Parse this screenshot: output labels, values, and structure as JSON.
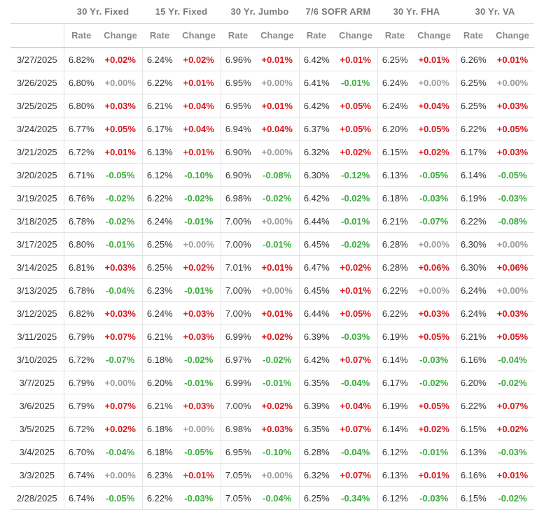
{
  "table": {
    "groups": [
      "30 Yr. Fixed",
      "15 Yr. Fixed",
      "30 Yr. Jumbo",
      "7/6 SOFR ARM",
      "30 Yr. FHA",
      "30 Yr. VA"
    ],
    "sub_rate_label": "Rate",
    "sub_change_label": "Change",
    "colors": {
      "increase": "#d71920",
      "decrease": "#3bab3d",
      "unchanged": "#9a9a9a"
    },
    "rows": [
      {
        "date": "3/27/2025",
        "cells": [
          [
            "6.82%",
            "+0.02%"
          ],
          [
            "6.24%",
            "+0.02%"
          ],
          [
            "6.96%",
            "+0.01%"
          ],
          [
            "6.42%",
            "+0.01%"
          ],
          [
            "6.25%",
            "+0.01%"
          ],
          [
            "6.26%",
            "+0.01%"
          ]
        ]
      },
      {
        "date": "3/26/2025",
        "cells": [
          [
            "6.80%",
            "+0.00%"
          ],
          [
            "6.22%",
            "+0.01%"
          ],
          [
            "6.95%",
            "+0.00%"
          ],
          [
            "6.41%",
            "-0.01%"
          ],
          [
            "6.24%",
            "+0.00%"
          ],
          [
            "6.25%",
            "+0.00%"
          ]
        ]
      },
      {
        "date": "3/25/2025",
        "cells": [
          [
            "6.80%",
            "+0.03%"
          ],
          [
            "6.21%",
            "+0.04%"
          ],
          [
            "6.95%",
            "+0.01%"
          ],
          [
            "6.42%",
            "+0.05%"
          ],
          [
            "6.24%",
            "+0.04%"
          ],
          [
            "6.25%",
            "+0.03%"
          ]
        ]
      },
      {
        "date": "3/24/2025",
        "cells": [
          [
            "6.77%",
            "+0.05%"
          ],
          [
            "6.17%",
            "+0.04%"
          ],
          [
            "6.94%",
            "+0.04%"
          ],
          [
            "6.37%",
            "+0.05%"
          ],
          [
            "6.20%",
            "+0.05%"
          ],
          [
            "6.22%",
            "+0.05%"
          ]
        ]
      },
      {
        "date": "3/21/2025",
        "cells": [
          [
            "6.72%",
            "+0.01%"
          ],
          [
            "6.13%",
            "+0.01%"
          ],
          [
            "6.90%",
            "+0.00%"
          ],
          [
            "6.32%",
            "+0.02%"
          ],
          [
            "6.15%",
            "+0.02%"
          ],
          [
            "6.17%",
            "+0.03%"
          ]
        ]
      },
      {
        "date": "3/20/2025",
        "cells": [
          [
            "6.71%",
            "-0.05%"
          ],
          [
            "6.12%",
            "-0.10%"
          ],
          [
            "6.90%",
            "-0.08%"
          ],
          [
            "6.30%",
            "-0.12%"
          ],
          [
            "6.13%",
            "-0.05%"
          ],
          [
            "6.14%",
            "-0.05%"
          ]
        ]
      },
      {
        "date": "3/19/2025",
        "cells": [
          [
            "6.76%",
            "-0.02%"
          ],
          [
            "6.22%",
            "-0.02%"
          ],
          [
            "6.98%",
            "-0.02%"
          ],
          [
            "6.42%",
            "-0.02%"
          ],
          [
            "6.18%",
            "-0.03%"
          ],
          [
            "6.19%",
            "-0.03%"
          ]
        ]
      },
      {
        "date": "3/18/2025",
        "cells": [
          [
            "6.78%",
            "-0.02%"
          ],
          [
            "6.24%",
            "-0.01%"
          ],
          [
            "7.00%",
            "+0.00%"
          ],
          [
            "6.44%",
            "-0.01%"
          ],
          [
            "6.21%",
            "-0.07%"
          ],
          [
            "6.22%",
            "-0.08%"
          ]
        ]
      },
      {
        "date": "3/17/2025",
        "cells": [
          [
            "6.80%",
            "-0.01%"
          ],
          [
            "6.25%",
            "+0.00%"
          ],
          [
            "7.00%",
            "-0.01%"
          ],
          [
            "6.45%",
            "-0.02%"
          ],
          [
            "6.28%",
            "+0.00%"
          ],
          [
            "6.30%",
            "+0.00%"
          ]
        ]
      },
      {
        "date": "3/14/2025",
        "cells": [
          [
            "6.81%",
            "+0.03%"
          ],
          [
            "6.25%",
            "+0.02%"
          ],
          [
            "7.01%",
            "+0.01%"
          ],
          [
            "6.47%",
            "+0.02%"
          ],
          [
            "6.28%",
            "+0.06%"
          ],
          [
            "6.30%",
            "+0.06%"
          ]
        ]
      },
      {
        "date": "3/13/2025",
        "cells": [
          [
            "6.78%",
            "-0.04%"
          ],
          [
            "6.23%",
            "-0.01%"
          ],
          [
            "7.00%",
            "+0.00%"
          ],
          [
            "6.45%",
            "+0.01%"
          ],
          [
            "6.22%",
            "+0.00%"
          ],
          [
            "6.24%",
            "+0.00%"
          ]
        ]
      },
      {
        "date": "3/12/2025",
        "cells": [
          [
            "6.82%",
            "+0.03%"
          ],
          [
            "6.24%",
            "+0.03%"
          ],
          [
            "7.00%",
            "+0.01%"
          ],
          [
            "6.44%",
            "+0.05%"
          ],
          [
            "6.22%",
            "+0.03%"
          ],
          [
            "6.24%",
            "+0.03%"
          ]
        ]
      },
      {
        "date": "3/11/2025",
        "cells": [
          [
            "6.79%",
            "+0.07%"
          ],
          [
            "6.21%",
            "+0.03%"
          ],
          [
            "6.99%",
            "+0.02%"
          ],
          [
            "6.39%",
            "-0.03%"
          ],
          [
            "6.19%",
            "+0.05%"
          ],
          [
            "6.21%",
            "+0.05%"
          ]
        ]
      },
      {
        "date": "3/10/2025",
        "cells": [
          [
            "6.72%",
            "-0.07%"
          ],
          [
            "6.18%",
            "-0.02%"
          ],
          [
            "6.97%",
            "-0.02%"
          ],
          [
            "6.42%",
            "+0.07%"
          ],
          [
            "6.14%",
            "-0.03%"
          ],
          [
            "6.16%",
            "-0.04%"
          ]
        ]
      },
      {
        "date": "3/7/2025",
        "cells": [
          [
            "6.79%",
            "+0.00%"
          ],
          [
            "6.20%",
            "-0.01%"
          ],
          [
            "6.99%",
            "-0.01%"
          ],
          [
            "6.35%",
            "-0.04%"
          ],
          [
            "6.17%",
            "-0.02%"
          ],
          [
            "6.20%",
            "-0.02%"
          ]
        ]
      },
      {
        "date": "3/6/2025",
        "cells": [
          [
            "6.79%",
            "+0.07%"
          ],
          [
            "6.21%",
            "+0.03%"
          ],
          [
            "7.00%",
            "+0.02%"
          ],
          [
            "6.39%",
            "+0.04%"
          ],
          [
            "6.19%",
            "+0.05%"
          ],
          [
            "6.22%",
            "+0.07%"
          ]
        ]
      },
      {
        "date": "3/5/2025",
        "cells": [
          [
            "6.72%",
            "+0.02%"
          ],
          [
            "6.18%",
            "+0.00%"
          ],
          [
            "6.98%",
            "+0.03%"
          ],
          [
            "6.35%",
            "+0.07%"
          ],
          [
            "6.14%",
            "+0.02%"
          ],
          [
            "6.15%",
            "+0.02%"
          ]
        ]
      },
      {
        "date": "3/4/2025",
        "cells": [
          [
            "6.70%",
            "-0.04%"
          ],
          [
            "6.18%",
            "-0.05%"
          ],
          [
            "6.95%",
            "-0.10%"
          ],
          [
            "6.28%",
            "-0.04%"
          ],
          [
            "6.12%",
            "-0.01%"
          ],
          [
            "6.13%",
            "-0.03%"
          ]
        ]
      },
      {
        "date": "3/3/2025",
        "cells": [
          [
            "6.74%",
            "+0.00%"
          ],
          [
            "6.23%",
            "+0.01%"
          ],
          [
            "7.05%",
            "+0.00%"
          ],
          [
            "6.32%",
            "+0.07%"
          ],
          [
            "6.13%",
            "+0.01%"
          ],
          [
            "6.16%",
            "+0.01%"
          ]
        ]
      },
      {
        "date": "2/28/2025",
        "cells": [
          [
            "6.74%",
            "-0.05%"
          ],
          [
            "6.22%",
            "-0.03%"
          ],
          [
            "7.05%",
            "-0.04%"
          ],
          [
            "6.25%",
            "-0.34%"
          ],
          [
            "6.12%",
            "-0.03%"
          ],
          [
            "6.15%",
            "-0.02%"
          ]
        ]
      }
    ]
  }
}
